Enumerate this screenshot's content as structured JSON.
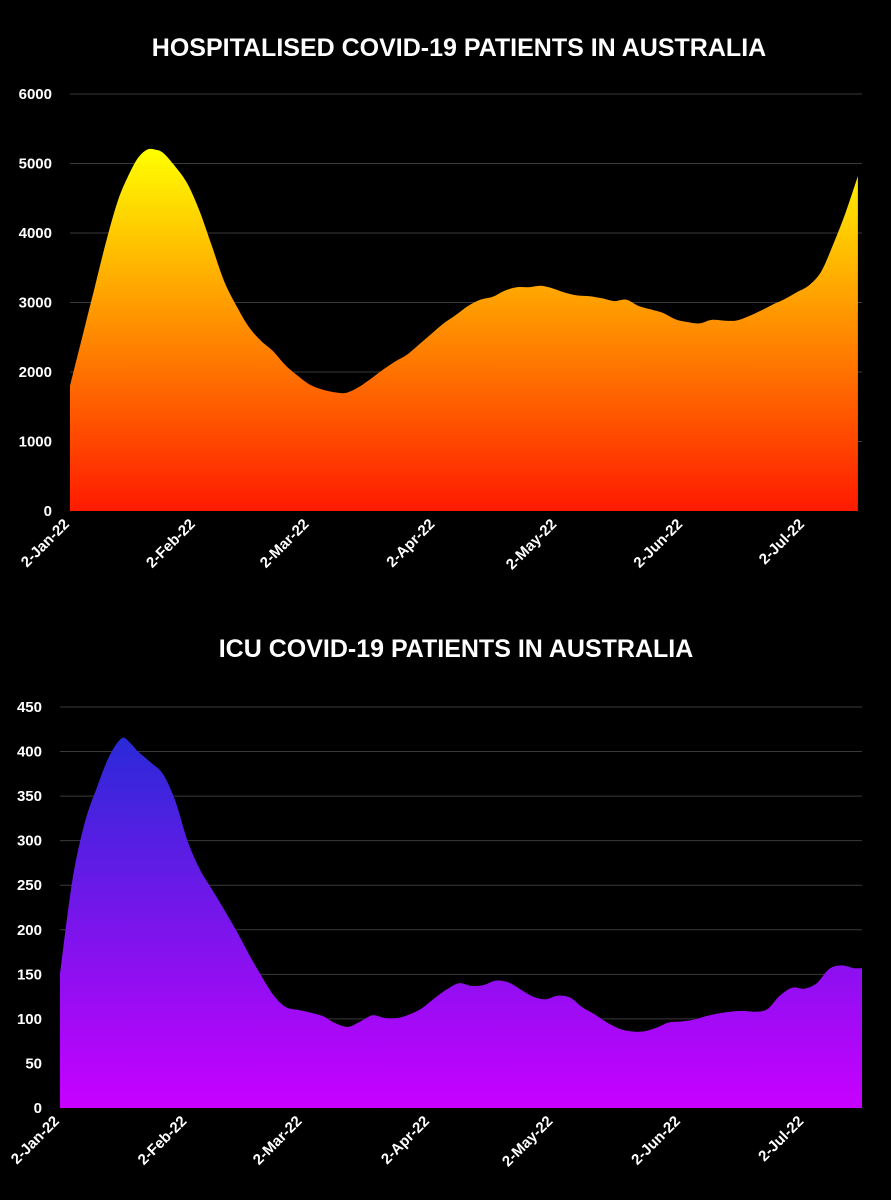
{
  "chart_data": [
    {
      "type": "area",
      "title": "HOSPITALISED COVID-19 PATIENTS IN AUSTRALIA",
      "xlabel": "",
      "ylabel": "",
      "ylim": [
        0,
        6000
      ],
      "yticks": [
        0,
        1000,
        2000,
        3000,
        4000,
        5000,
        6000
      ],
      "xlim": [
        "2022-01-02",
        "2022-07-16"
      ],
      "xtick_labels": [
        "2-Jan-22",
        "2-Feb-22",
        "2-Mar-22",
        "2-Apr-22",
        "2-May-22",
        "2-Jun-22",
        "2-Jul-22"
      ],
      "xtick_dates": [
        "2022-01-02",
        "2022-02-02",
        "2022-03-02",
        "2022-04-02",
        "2022-05-02",
        "2022-06-02",
        "2022-07-02"
      ],
      "grid": "horizontal",
      "gradient_top": "#ffff00",
      "gradient_bottom": "#ff1a00",
      "series": [
        {
          "x": [
            "2022-01-02",
            "2022-01-05",
            "2022-01-08",
            "2022-01-11",
            "2022-01-14",
            "2022-01-17",
            "2022-01-19",
            "2022-01-21",
            "2022-01-23",
            "2022-01-25",
            "2022-01-28",
            "2022-01-31",
            "2022-02-03",
            "2022-02-06",
            "2022-02-09",
            "2022-02-12",
            "2022-02-15",
            "2022-02-18",
            "2022-02-21",
            "2022-02-24",
            "2022-02-27",
            "2022-03-02",
            "2022-03-05",
            "2022-03-08",
            "2022-03-11",
            "2022-03-14",
            "2022-03-17",
            "2022-03-20",
            "2022-03-23",
            "2022-03-26",
            "2022-03-29",
            "2022-04-01",
            "2022-04-04",
            "2022-04-07",
            "2022-04-10",
            "2022-04-13",
            "2022-04-16",
            "2022-04-19",
            "2022-04-22",
            "2022-04-25",
            "2022-04-28",
            "2022-05-01",
            "2022-05-04",
            "2022-05-07",
            "2022-05-10",
            "2022-05-13",
            "2022-05-16",
            "2022-05-19",
            "2022-05-22",
            "2022-05-25",
            "2022-05-28",
            "2022-05-31",
            "2022-06-03",
            "2022-06-06",
            "2022-06-09",
            "2022-06-12",
            "2022-06-15",
            "2022-06-18",
            "2022-06-21",
            "2022-06-24",
            "2022-06-27",
            "2022-06-30",
            "2022-07-03",
            "2022-07-06",
            "2022-07-09",
            "2022-07-12",
            "2022-07-15"
          ],
          "values": [
            1800,
            2500,
            3200,
            3900,
            4500,
            4900,
            5100,
            5200,
            5200,
            5150,
            4950,
            4700,
            4300,
            3800,
            3300,
            2950,
            2650,
            2450,
            2300,
            2100,
            1950,
            1820,
            1750,
            1710,
            1700,
            1780,
            1900,
            2030,
            2150,
            2250,
            2400,
            2550,
            2700,
            2820,
            2950,
            3040,
            3080,
            3170,
            3220,
            3220,
            3240,
            3200,
            3140,
            3100,
            3090,
            3060,
            3020,
            3040,
            2950,
            2900,
            2850,
            2760,
            2720,
            2700,
            2750,
            2740,
            2740,
            2800,
            2880,
            2970,
            3050,
            3150,
            3250,
            3450,
            3850,
            4300,
            4820
          ]
        }
      ]
    },
    {
      "type": "area",
      "title": "ICU COVID-19 PATIENTS IN AUSTRALIA",
      "xlabel": "",
      "ylabel": "",
      "ylim": [
        0,
        450
      ],
      "yticks": [
        0,
        50,
        100,
        150,
        200,
        250,
        300,
        350,
        400,
        450
      ],
      "xlim": [
        "2022-01-02",
        "2022-07-16"
      ],
      "xtick_labels": [
        "2-Jan-22",
        "2-Feb-22",
        "2-Mar-22",
        "2-Apr-22",
        "2-May-22",
        "2-Jun-22",
        "2-Jul-22"
      ],
      "xtick_dates": [
        "2022-01-02",
        "2022-02-02",
        "2022-03-02",
        "2022-04-02",
        "2022-05-02",
        "2022-06-02",
        "2022-07-02"
      ],
      "grid": "horizontal",
      "gradient_top": "#2a2ad8",
      "gradient_bottom": "#c800ff",
      "series": [
        {
          "x": [
            "2022-01-02",
            "2022-01-05",
            "2022-01-08",
            "2022-01-11",
            "2022-01-14",
            "2022-01-17",
            "2022-01-19",
            "2022-01-21",
            "2022-01-24",
            "2022-01-27",
            "2022-01-30",
            "2022-02-02",
            "2022-02-05",
            "2022-02-08",
            "2022-02-11",
            "2022-02-14",
            "2022-02-17",
            "2022-02-20",
            "2022-02-23",
            "2022-02-26",
            "2022-03-01",
            "2022-03-04",
            "2022-03-07",
            "2022-03-10",
            "2022-03-13",
            "2022-03-16",
            "2022-03-19",
            "2022-03-22",
            "2022-03-25",
            "2022-03-28",
            "2022-03-31",
            "2022-04-03",
            "2022-04-06",
            "2022-04-09",
            "2022-04-12",
            "2022-04-15",
            "2022-04-18",
            "2022-04-21",
            "2022-04-24",
            "2022-04-27",
            "2022-04-30",
            "2022-05-03",
            "2022-05-06",
            "2022-05-09",
            "2022-05-12",
            "2022-05-15",
            "2022-05-18",
            "2022-05-21",
            "2022-05-24",
            "2022-05-27",
            "2022-05-30",
            "2022-06-02",
            "2022-06-05",
            "2022-06-08",
            "2022-06-11",
            "2022-06-14",
            "2022-06-17",
            "2022-06-20",
            "2022-06-23",
            "2022-06-26",
            "2022-06-29",
            "2022-07-02",
            "2022-07-05",
            "2022-07-08",
            "2022-07-11",
            "2022-07-14",
            "2022-07-16"
          ],
          "values": [
            150,
            255,
            320,
            360,
            395,
            415,
            410,
            400,
            388,
            375,
            345,
            300,
            268,
            245,
            222,
            198,
            172,
            148,
            126,
            113,
            110,
            107,
            103,
            95,
            91,
            97,
            104,
            101,
            101,
            105,
            112,
            123,
            133,
            140,
            137,
            138,
            143,
            141,
            133,
            125,
            122,
            126,
            124,
            113,
            105,
            96,
            89,
            86,
            86,
            90,
            96,
            97,
            99,
            103,
            106,
            108,
            109,
            108,
            111,
            126,
            135,
            134,
            140,
            156,
            160,
            157,
            157
          ]
        }
      ]
    }
  ]
}
